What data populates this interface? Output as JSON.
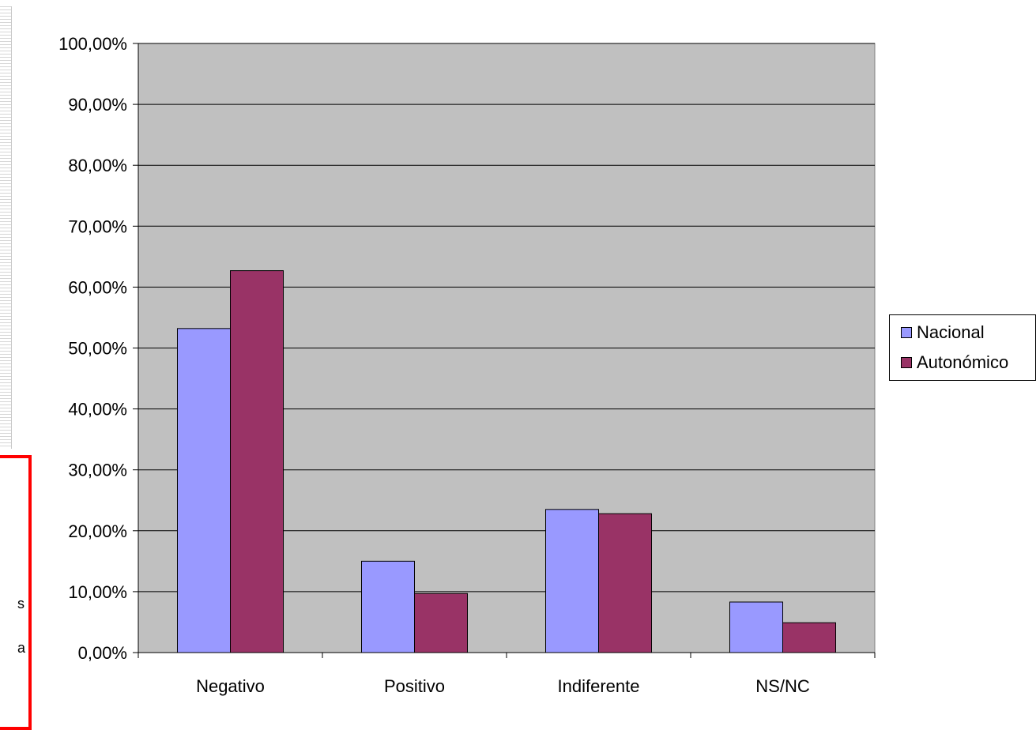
{
  "chart_data": {
    "type": "bar",
    "categories": [
      "Negativo",
      "Positivo",
      "Indiferente",
      "NS/NC"
    ],
    "series": [
      {
        "name": "Nacional",
        "color": "#9999ff",
        "values": [
          53.2,
          15.0,
          23.5,
          8.3
        ]
      },
      {
        "name": "Autonómico",
        "color": "#993366",
        "values": [
          62.7,
          9.7,
          22.8,
          4.9
        ]
      }
    ],
    "ylim": [
      0,
      100
    ],
    "yticks": [
      "0,00%",
      "10,00%",
      "20,00%",
      "30,00%",
      "40,00%",
      "50,00%",
      "60,00%",
      "70,00%",
      "80,00%",
      "90,00%",
      "100,00%"
    ],
    "plot_background": "#c0c0c0",
    "grid": true,
    "legend_position": "right"
  },
  "callout": {
    "fragments": [
      "s",
      "a"
    ]
  }
}
